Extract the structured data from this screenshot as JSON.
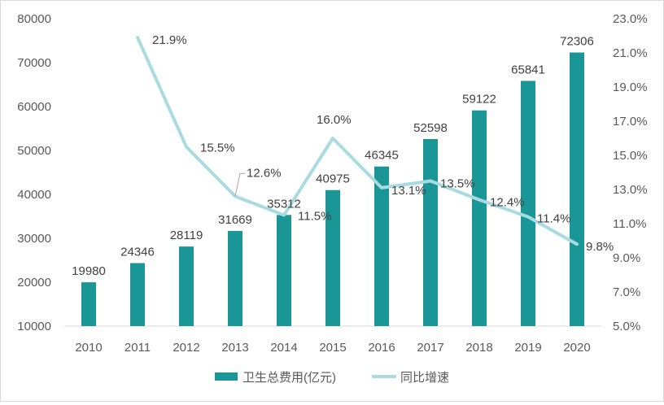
{
  "chart_data": {
    "type": "bar",
    "categories": [
      "2010",
      "2011",
      "2012",
      "2013",
      "2014",
      "2015",
      "2016",
      "2017",
      "2018",
      "2019",
      "2020"
    ],
    "series": [
      {
        "name": "卫生总费用(亿元)",
        "kind": "bar",
        "axis": "left",
        "color": "#1a9696",
        "values": [
          19980,
          24346,
          28119,
          31669,
          35312,
          40975,
          46345,
          52598,
          59122,
          65841,
          72306
        ],
        "labels": [
          "19980",
          "24346",
          "28119",
          "31669",
          "35312",
          "40975",
          "46345",
          "52598",
          "59122",
          "65841",
          "72306"
        ]
      },
      {
        "name": "同比增速",
        "kind": "line",
        "axis": "right",
        "color": "#a9dbe0",
        "values": [
          null,
          21.9,
          15.5,
          12.6,
          11.5,
          16.0,
          13.1,
          13.5,
          12.4,
          11.4,
          9.8
        ],
        "labels": [
          "",
          "21.9%",
          "15.5%",
          "12.6%",
          "11.5%",
          "16.0%",
          "13.1%",
          "13.5%",
          "12.4%",
          "11.4%",
          "9.8%"
        ]
      }
    ],
    "y_left": {
      "min": 10000,
      "max": 80000,
      "step": 10000,
      "ticks": [
        "80000",
        "70000",
        "60000",
        "50000",
        "40000",
        "30000",
        "20000",
        "10000"
      ]
    },
    "y_right": {
      "min": 5.0,
      "max": 23.0,
      "step": 2.0,
      "ticks": [
        "23.0%",
        "21.0%",
        "19.0%",
        "17.0%",
        "15.0%",
        "13.0%",
        "11.0%",
        "9.0%",
        "7.0%",
        "5.0%"
      ]
    },
    "grid": false,
    "legend_position": "bottom"
  }
}
